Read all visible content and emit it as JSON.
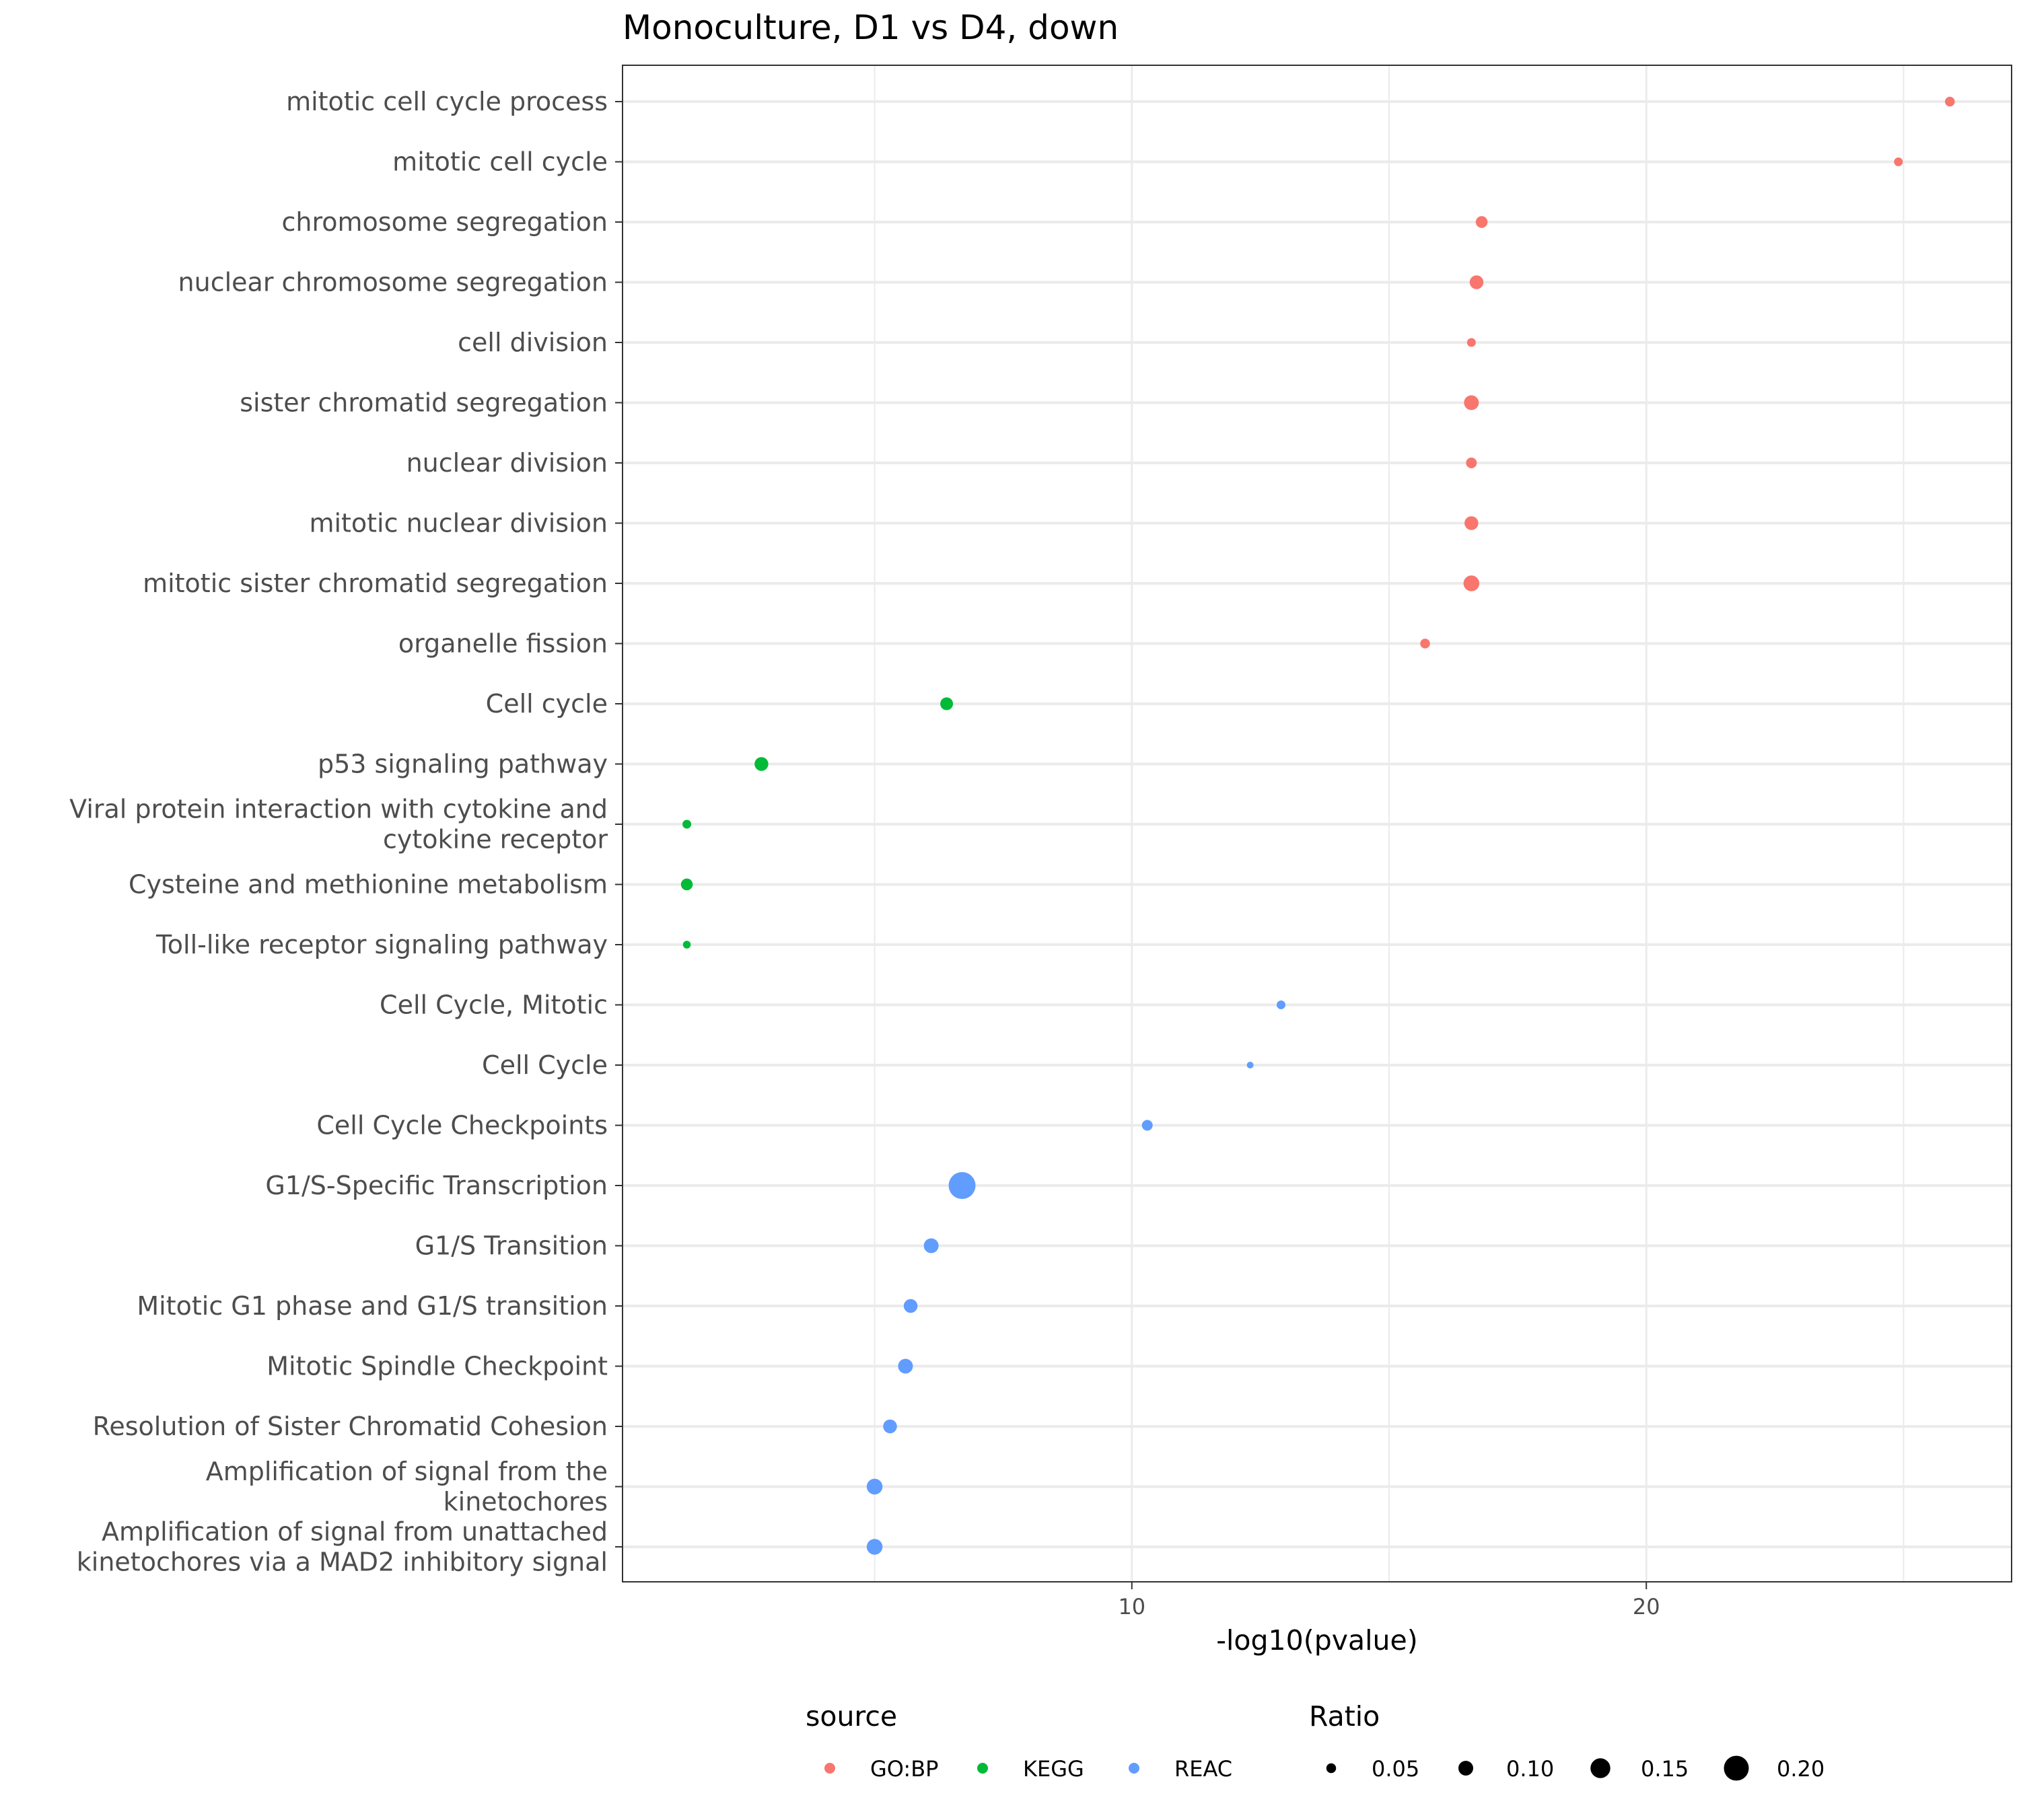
{
  "chart_data": {
    "type": "scatter",
    "title": "Monoculture, D1 vs D4, down",
    "xlabel": "-log10(pvalue)",
    "ylabel": "",
    "xlim": [
      0.1,
      27.1
    ],
    "x_ticks": [
      10,
      20
    ],
    "grid": true,
    "legend_position": "bottom",
    "categories": [
      "mitotic cell cycle process",
      "mitotic cell cycle",
      "chromosome segregation",
      "nuclear chromosome segregation",
      "cell division",
      "sister chromatid segregation",
      "nuclear division",
      "mitotic nuclear division",
      "mitotic sister chromatid segregation",
      "organelle fission",
      "Cell cycle",
      "p53 signaling pathway",
      "Viral protein interaction with cytokine and cytokine receptor",
      "Cysteine and methionine metabolism",
      "Toll-like receptor signaling pathway",
      "Cell Cycle, Mitotic",
      "Cell Cycle",
      "Cell Cycle Checkpoints",
      "G1/S-Specific Transcription",
      "G1/S Transition",
      "Mitotic G1 phase and G1/S transition",
      "Mitotic Spindle Checkpoint",
      "Resolution of Sister Chromatid Cohesion",
      "Amplification of signal from the kinetochores",
      "Amplification of signal from unattached kinetochores via a MAD2 inhibitory signal"
    ],
    "category_lines": [
      [
        "mitotic cell cycle process"
      ],
      [
        "mitotic cell cycle"
      ],
      [
        "chromosome segregation"
      ],
      [
        "nuclear chromosome segregation"
      ],
      [
        "cell division"
      ],
      [
        "sister chromatid segregation"
      ],
      [
        "nuclear division"
      ],
      [
        "mitotic nuclear division"
      ],
      [
        "mitotic sister chromatid segregation"
      ],
      [
        "organelle fission"
      ],
      [
        "Cell cycle"
      ],
      [
        "p53 signaling pathway"
      ],
      [
        "Viral protein interaction with cytokine and",
        "cytokine receptor"
      ],
      [
        "Cysteine and methionine metabolism"
      ],
      [
        "Toll-like receptor signaling pathway"
      ],
      [
        "Cell Cycle, Mitotic"
      ],
      [
        "Cell Cycle"
      ],
      [
        "Cell Cycle Checkpoints"
      ],
      [
        "G1/S-Specific Transcription"
      ],
      [
        "G1/S Transition"
      ],
      [
        "Mitotic G1 phase and G1/S transition"
      ],
      [
        "Mitotic Spindle Checkpoint"
      ],
      [
        "Resolution of Sister Chromatid Cohesion"
      ],
      [
        "Amplification of signal from the",
        "kinetochores"
      ],
      [
        "Amplification of signal from unattached",
        "kinetochores via a MAD2 inhibitory signal"
      ]
    ],
    "points": [
      {
        "term": "mitotic cell cycle process",
        "source": "GO:BP",
        "x": 25.9,
        "ratio": 0.05
      },
      {
        "term": "mitotic cell cycle",
        "source": "GO:BP",
        "x": 24.9,
        "ratio": 0.04
      },
      {
        "term": "chromosome segregation",
        "source": "GO:BP",
        "x": 16.8,
        "ratio": 0.07
      },
      {
        "term": "nuclear chromosome segregation",
        "source": "GO:BP",
        "x": 16.7,
        "ratio": 0.09
      },
      {
        "term": "cell division",
        "source": "GO:BP",
        "x": 16.6,
        "ratio": 0.04
      },
      {
        "term": "sister chromatid segregation",
        "source": "GO:BP",
        "x": 16.6,
        "ratio": 0.1
      },
      {
        "term": "nuclear division",
        "source": "GO:BP",
        "x": 16.6,
        "ratio": 0.06
      },
      {
        "term": "mitotic nuclear division",
        "source": "GO:BP",
        "x": 16.6,
        "ratio": 0.09
      },
      {
        "term": "mitotic sister chromatid segregation",
        "source": "GO:BP",
        "x": 16.6,
        "ratio": 0.11
      },
      {
        "term": "organelle fission",
        "source": "GO:BP",
        "x": 15.7,
        "ratio": 0.05
      },
      {
        "term": "Cell cycle",
        "source": "KEGG",
        "x": 6.4,
        "ratio": 0.08
      },
      {
        "term": "p53 signaling pathway",
        "source": "KEGG",
        "x": 2.8,
        "ratio": 0.09
      },
      {
        "term": "Viral protein interaction with cytokine and cytokine receptor",
        "source": "KEGG",
        "x": 1.35,
        "ratio": 0.04
      },
      {
        "term": "Cysteine and methionine metabolism",
        "source": "KEGG",
        "x": 1.35,
        "ratio": 0.07
      },
      {
        "term": "Toll-like receptor signaling pathway",
        "source": "KEGG",
        "x": 1.35,
        "ratio": 0.03
      },
      {
        "term": "Cell Cycle, Mitotic",
        "source": "REAC",
        "x": 12.9,
        "ratio": 0.04
      },
      {
        "term": "Cell Cycle",
        "source": "REAC",
        "x": 12.3,
        "ratio": 0.02
      },
      {
        "term": "Cell Cycle Checkpoints",
        "source": "REAC",
        "x": 10.3,
        "ratio": 0.06
      },
      {
        "term": "G1/S-Specific Transcription",
        "source": "REAC",
        "x": 6.7,
        "ratio": 0.22
      },
      {
        "term": "G1/S Transition",
        "source": "REAC",
        "x": 6.1,
        "ratio": 0.1
      },
      {
        "term": "Mitotic G1 phase and G1/S transition",
        "source": "REAC",
        "x": 5.7,
        "ratio": 0.09
      },
      {
        "term": "Mitotic Spindle Checkpoint",
        "source": "REAC",
        "x": 5.6,
        "ratio": 0.1
      },
      {
        "term": "Resolution of Sister Chromatid Cohesion",
        "source": "REAC",
        "x": 5.3,
        "ratio": 0.09
      },
      {
        "term": "Amplification of signal from the kinetochores",
        "source": "REAC",
        "x": 5.0,
        "ratio": 0.11
      },
      {
        "term": "Amplification of signal from unattached kinetochores via a MAD2 inhibitory signal",
        "source": "REAC",
        "x": 5.0,
        "ratio": 0.11
      }
    ],
    "legend_color": {
      "title": "source",
      "entries": [
        {
          "label": "GO:BP",
          "color": "#F8766D"
        },
        {
          "label": "KEGG",
          "color": "#00BA38"
        },
        {
          "label": "REAC",
          "color": "#619CFF"
        }
      ]
    },
    "legend_size": {
      "title": "Ratio",
      "entries": [
        {
          "label": "0.05",
          "value": 0.05
        },
        {
          "label": "0.10",
          "value": 0.1
        },
        {
          "label": "0.15",
          "value": 0.15
        },
        {
          "label": "0.20",
          "value": 0.2
        }
      ]
    }
  }
}
